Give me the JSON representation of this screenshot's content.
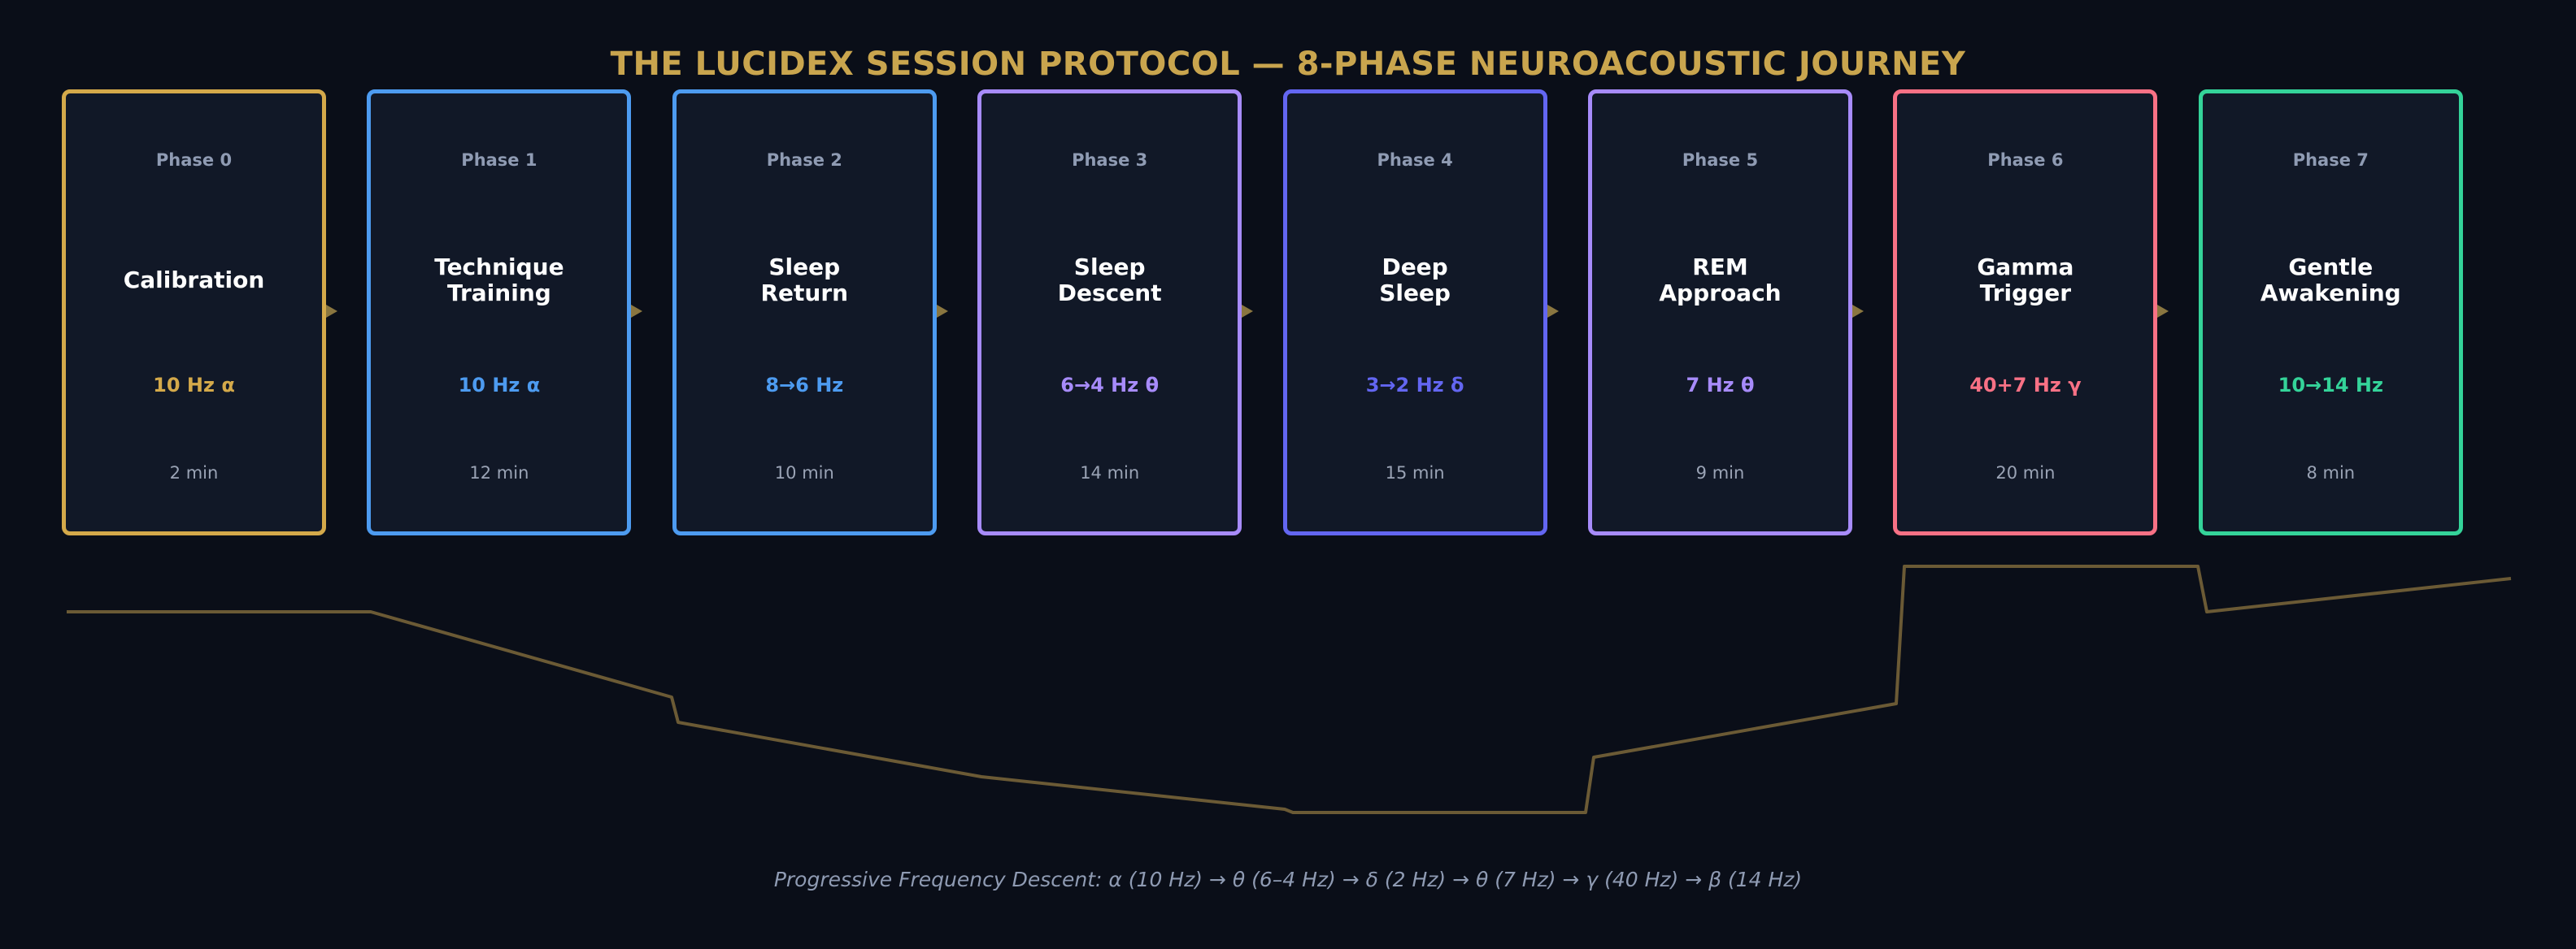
{
  "title": "THE LUCIDEX SESSION PROTOCOL — 8-PHASE NEUROACOUSTIC JOURNEY",
  "colors": {
    "title": "#c9a54e",
    "background": "#0a0e18",
    "card_fill": "#111827",
    "connector": "#8a7640",
    "wave_line": "#6b5a35"
  },
  "phases": [
    {
      "phase": "Phase 0",
      "name": "Calibration",
      "freq": "10 Hz α",
      "duration": "2 min",
      "color": "#d4a94a"
    },
    {
      "phase": "Phase 1",
      "name": "Technique\nTraining",
      "freq": "10 Hz α",
      "duration": "12 min",
      "color": "#4d9bf0"
    },
    {
      "phase": "Phase 2",
      "name": "Sleep\nReturn",
      "freq": "8→6 Hz",
      "duration": "10 min",
      "color": "#4d9bf0"
    },
    {
      "phase": "Phase 3",
      "name": "Sleep\nDescent",
      "freq": "6→4 Hz θ",
      "duration": "14 min",
      "color": "#a78bfa"
    },
    {
      "phase": "Phase 4",
      "name": "Deep\nSleep",
      "freq": "3→2 Hz δ",
      "duration": "15 min",
      "color": "#6366f1"
    },
    {
      "phase": "Phase 5",
      "name": "REM\nApproach",
      "freq": "7 Hz θ",
      "duration": "9 min",
      "color": "#a78bfa"
    },
    {
      "phase": "Phase 6",
      "name": "Gamma\nTrigger",
      "freq": "40+7 Hz γ",
      "duration": "20 min",
      "color": "#f87185"
    },
    {
      "phase": "Phase 7",
      "name": "Gentle\nAwakening",
      "freq": "10→14 Hz",
      "duration": "8 min",
      "color": "#34d399"
    }
  ],
  "caption": "Progressive Frequency Descent: α (10 Hz) → θ (6–4 Hz) → δ (2 Hz) → θ (7 Hz) → γ (40 Hz) → β (14 Hz)"
}
